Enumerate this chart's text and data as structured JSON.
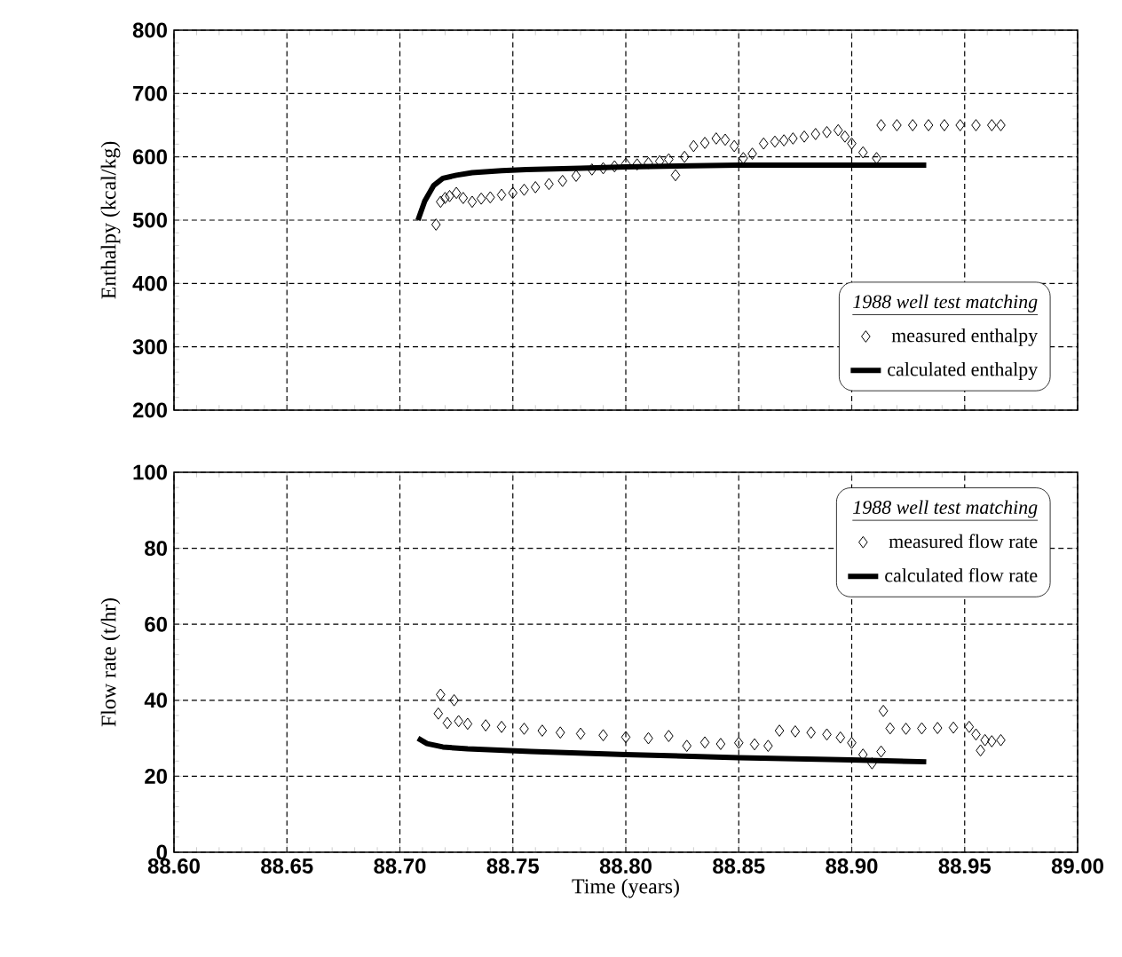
{
  "chart_data": [
    {
      "type": "scatter",
      "ylabel": "Enthalpy (kcal/kg)",
      "legend_title": "1988 well test matching",
      "xlim": [
        88.6,
        89.0
      ],
      "ylim": [
        200,
        800
      ],
      "xticks": [
        {
          "value": 88.6,
          "label": null
        },
        {
          "value": 88.65,
          "label": null
        },
        {
          "value": 88.7,
          "label": null
        },
        {
          "value": 88.75,
          "label": null
        },
        {
          "value": 88.8,
          "label": null
        },
        {
          "value": 88.85,
          "label": null
        },
        {
          "value": 88.9,
          "label": null
        },
        {
          "value": 88.95,
          "label": null
        },
        {
          "value": 89.0,
          "label": null
        }
      ],
      "yticks": [
        200,
        300,
        400,
        500,
        600,
        700,
        800
      ],
      "tick_labels": "y",
      "grid": true,
      "legend": "bottom right",
      "marker": "diamond",
      "series": [
        {
          "name": "measured enthalpy",
          "color": "#000000",
          "x": [
            88.716,
            88.718,
            88.72,
            88.722,
            88.725,
            88.728,
            88.732,
            88.736,
            88.74,
            88.745,
            88.75,
            88.755,
            88.76,
            88.766,
            88.772,
            88.778,
            88.785,
            88.79,
            88.795,
            88.8,
            88.805,
            88.81,
            88.815,
            88.819,
            88.822,
            88.826,
            88.83,
            88.835,
            88.84,
            88.844,
            88.848,
            88.852,
            88.856,
            88.861,
            88.866,
            88.87,
            88.874,
            88.879,
            88.884,
            88.889,
            88.894,
            88.897,
            88.9,
            88.905,
            88.911,
            88.913,
            88.92,
            88.927,
            88.934,
            88.941,
            88.948,
            88.955,
            88.962,
            88.966
          ],
          "values": [
            493,
            529,
            535,
            538,
            543,
            535,
            529,
            534,
            536,
            540,
            543,
            548,
            552,
            557,
            562,
            570,
            580,
            582,
            585,
            589,
            588,
            590,
            593,
            596,
            571,
            600,
            617,
            622,
            629,
            627,
            617,
            598,
            605,
            621,
            624,
            626,
            629,
            632,
            636,
            639,
            642,
            632,
            621,
            607,
            598,
            650,
            650,
            650,
            650,
            650,
            650,
            650,
            650,
            650
          ]
        },
        {
          "name": "calculated enthalpy",
          "type": "line",
          "marker": "none",
          "color": "#000000",
          "x": [
            88.708,
            88.711,
            88.715,
            88.719,
            88.725,
            88.732,
            88.745,
            88.756,
            88.78,
            88.8,
            88.85,
            88.9,
            88.933
          ],
          "values": [
            500,
            530,
            555,
            566,
            571,
            575,
            578,
            580,
            582,
            584,
            587,
            587,
            587
          ]
        }
      ]
    },
    {
      "type": "scatter",
      "xlabel": "Time (years)",
      "ylabel": "Flow rate (t/hr)",
      "legend_title": "1988 well test matching",
      "xlim": [
        88.6,
        89.0
      ],
      "ylim": [
        0,
        100
      ],
      "xticks": [
        {
          "value": 88.6,
          "label": "88.60"
        },
        {
          "value": 88.65,
          "label": "88.65"
        },
        {
          "value": 88.7,
          "label": "88.70"
        },
        {
          "value": 88.75,
          "label": "88.75"
        },
        {
          "value": 88.8,
          "label": "88.80"
        },
        {
          "value": 88.85,
          "label": "88.85"
        },
        {
          "value": 88.9,
          "label": "88.90"
        },
        {
          "value": 88.95,
          "label": "88.95"
        },
        {
          "value": 89.0,
          "label": "89.00"
        }
      ],
      "yticks": [
        0,
        20,
        40,
        60,
        80,
        100
      ],
      "grid": true,
      "legend": "top right",
      "marker": "diamond",
      "series": [
        {
          "name": "measured flow rate",
          "color": "#000000",
          "x": [
            88.717,
            88.718,
            88.721,
            88.724,
            88.726,
            88.73,
            88.738,
            88.745,
            88.755,
            88.763,
            88.771,
            88.78,
            88.79,
            88.8,
            88.81,
            88.819,
            88.827,
            88.835,
            88.842,
            88.85,
            88.857,
            88.863,
            88.868,
            88.875,
            88.882,
            88.889,
            88.895,
            88.9,
            88.905,
            88.909,
            88.913,
            88.914,
            88.917,
            88.924,
            88.931,
            88.938,
            88.945,
            88.952,
            88.955,
            88.957,
            88.959,
            88.962,
            88.966
          ],
          "values": [
            36.5,
            41.5,
            34,
            40,
            34.5,
            33.8,
            33.4,
            33,
            32.5,
            32,
            31.5,
            31.2,
            30.8,
            30.3,
            30,
            30.6,
            28,
            28.9,
            28.5,
            28.8,
            28.4,
            28,
            32,
            31.8,
            31.5,
            31,
            30.2,
            28.8,
            25.7,
            23.4,
            26.5,
            37.2,
            32.6,
            32.5,
            32.6,
            32.7,
            32.8,
            33,
            31,
            26.8,
            29.5,
            29.2,
            29.5
          ]
        },
        {
          "name": "calculated flow rate",
          "type": "line",
          "marker": "none",
          "color": "#000000",
          "x": [
            88.708,
            88.712,
            88.719,
            88.73,
            88.758,
            88.8,
            88.85,
            88.9,
            88.933
          ],
          "values": [
            30,
            28.6,
            27.7,
            27.2,
            26.5,
            25.7,
            24.9,
            24.3,
            23.8
          ]
        }
      ]
    }
  ]
}
